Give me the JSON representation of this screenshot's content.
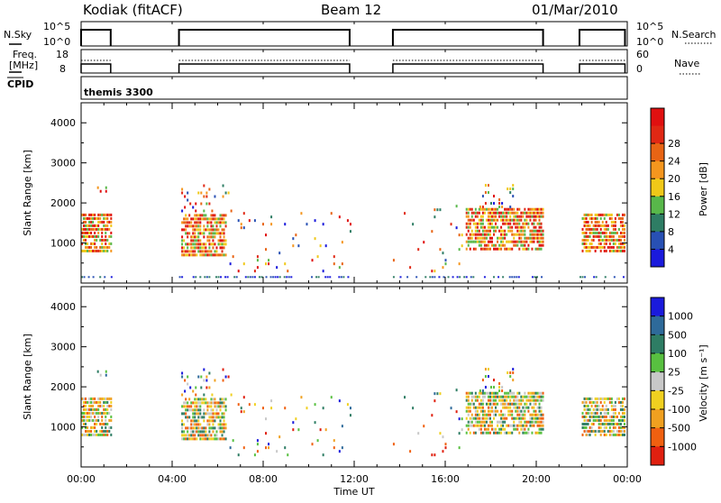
{
  "header": {
    "station": "Kodiak (fitACF)",
    "beam": "Beam 12",
    "date": "01/Mar/2010"
  },
  "panels": {
    "nsky": {
      "label": "N.Sky",
      "ticks": [
        "10^5",
        "10^0"
      ]
    },
    "nsearch": {
      "label": "N.Search",
      "ticks": [
        "10^5",
        "10^0"
      ]
    },
    "freq": {
      "label_line1": "Freq.",
      "label_line2": "[MHz]",
      "ticks": [
        "18",
        "8"
      ]
    },
    "nave": {
      "label": "Nave",
      "ticks": [
        "60",
        "0"
      ]
    },
    "cpid": {
      "label": "CPID",
      "value": "themis 3300"
    }
  },
  "axes": {
    "xlabel": "Time UT",
    "xticks": [
      "00:00",
      "04:00",
      "08:00",
      "12:00",
      "16:00",
      "20:00",
      "00:00"
    ],
    "ylabel": "Slant Range [km]",
    "yticks": [
      "1000",
      "2000",
      "3000",
      "4000"
    ]
  },
  "colorbars": {
    "power": {
      "label": "Power [dB]",
      "ticks": [
        "4",
        "8",
        "12",
        "16",
        "20",
        "24",
        "28"
      ],
      "colors": [
        "#1a1adc",
        "#2850b4",
        "#2e7d64",
        "#58b84a",
        "#f0c818",
        "#f5961e",
        "#e86414",
        "#e02814",
        "#e01010"
      ]
    },
    "velocity": {
      "label": "Velocity [m s⁻¹]",
      "ticks": [
        "1000",
        "500",
        "100",
        "25",
        "-25",
        "-100",
        "-500",
        "-1000"
      ],
      "colors": [
        "#1a1adc",
        "#2e6a9a",
        "#2e7d64",
        "#58c040",
        "#c8c8c8",
        "#f0d020",
        "#f0a020",
        "#f06010",
        "#e02010"
      ]
    }
  },
  "chart_data": {
    "type": "heatmap",
    "title": "Kodiak (fitACF) Beam 12 01/Mar/2010",
    "xlabel": "Time UT",
    "ylabel": "Slant Range [km]",
    "xlim": [
      "00:00",
      "24:00"
    ],
    "ylim": [
      0,
      4500
    ],
    "operating_intervals_ut": [
      [
        0.0,
        1.3
      ],
      [
        4.3,
        11.8
      ],
      [
        13.7,
        20.3
      ],
      [
        21.9,
        23.9
      ]
    ],
    "echo_groups": [
      {
        "t": [
          0.0,
          1.3
        ],
        "r": [
          800,
          1700
        ],
        "note": "dense echoes"
      },
      {
        "t": [
          0.7,
          1.1
        ],
        "r": [
          2200,
          2400
        ],
        "note": "sparse"
      },
      {
        "t": [
          4.4,
          6.4
        ],
        "r": [
          700,
          1750
        ],
        "note": "dense echoes"
      },
      {
        "t": [
          4.4,
          6.6
        ],
        "r": [
          1800,
          2500
        ],
        "note": "sparse"
      },
      {
        "t": [
          6.4,
          11.8
        ],
        "r": [
          300,
          1800
        ],
        "note": "scattered"
      },
      {
        "t": [
          13.7,
          16.9
        ],
        "r": [
          300,
          2000
        ],
        "note": "scattered"
      },
      {
        "t": [
          16.9,
          20.3
        ],
        "r": [
          850,
          1900
        ],
        "note": "dense echoes"
      },
      {
        "t": [
          17.5,
          19.2
        ],
        "r": [
          1900,
          2500
        ],
        "note": "sparse"
      },
      {
        "t": [
          22.0,
          23.9
        ],
        "r": [
          800,
          1700
        ],
        "note": "dense echoes"
      }
    ]
  }
}
